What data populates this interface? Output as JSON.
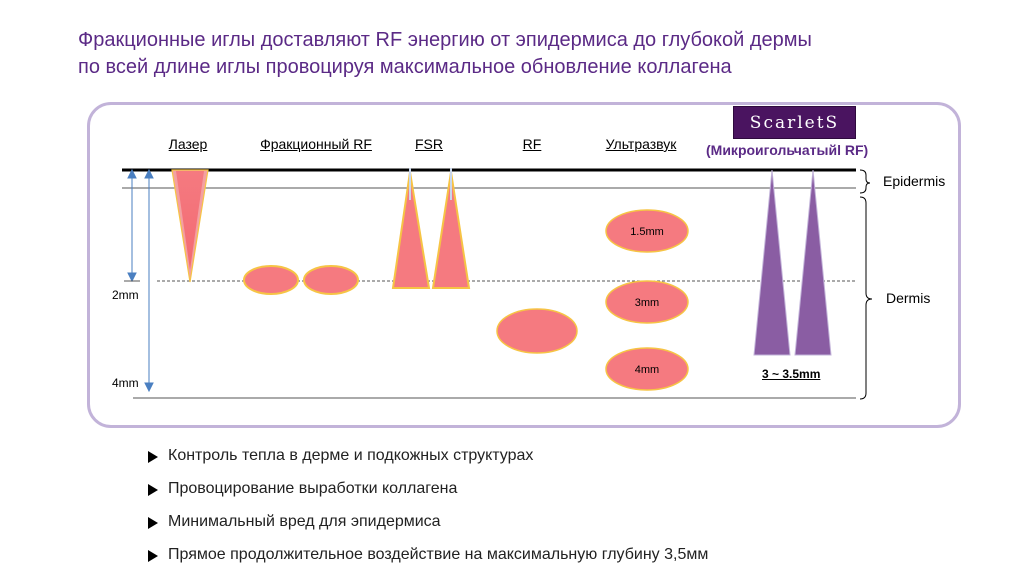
{
  "title": {
    "line1": "Фракционные иглы доставляют RF энергию от эпидермиса до глубокой дермы",
    "line2": "по всей длине иглы провоцируя максимальное обновление коллагена"
  },
  "columns": {
    "laser": "Лазер",
    "fractional_rf": "Фракционный RF",
    "fsr": "FSR",
    "rf": "RF",
    "ultrasound": "Ультразвук"
  },
  "logo": {
    "text": "ScarletS"
  },
  "microneedle_label": "(Микроигольчатыйl RF)",
  "layers": {
    "epidermis": "Epidermis",
    "dermis": "Dermis"
  },
  "depths": {
    "d2": "2mm",
    "d4": "4mm"
  },
  "ultrasound_bubbles": [
    "1.5mm",
    "3mm",
    "4mm"
  ],
  "needle_depth": "3 ~ 3.5mm",
  "bullets": [
    "Контроль тепла в дерме и подкожных структурах",
    "Провоцирование выработки коллагена",
    "Минимальный вред для эпидермиса",
    "Прямое продолжительное воздействие на максимальную глубину 3,5мм"
  ],
  "colors": {
    "title": "#5b2a86",
    "heat": "#f57a80",
    "heat_edge": "#f6c445",
    "needle": "#8a5da3",
    "panel_border": "#c2b3d9"
  }
}
